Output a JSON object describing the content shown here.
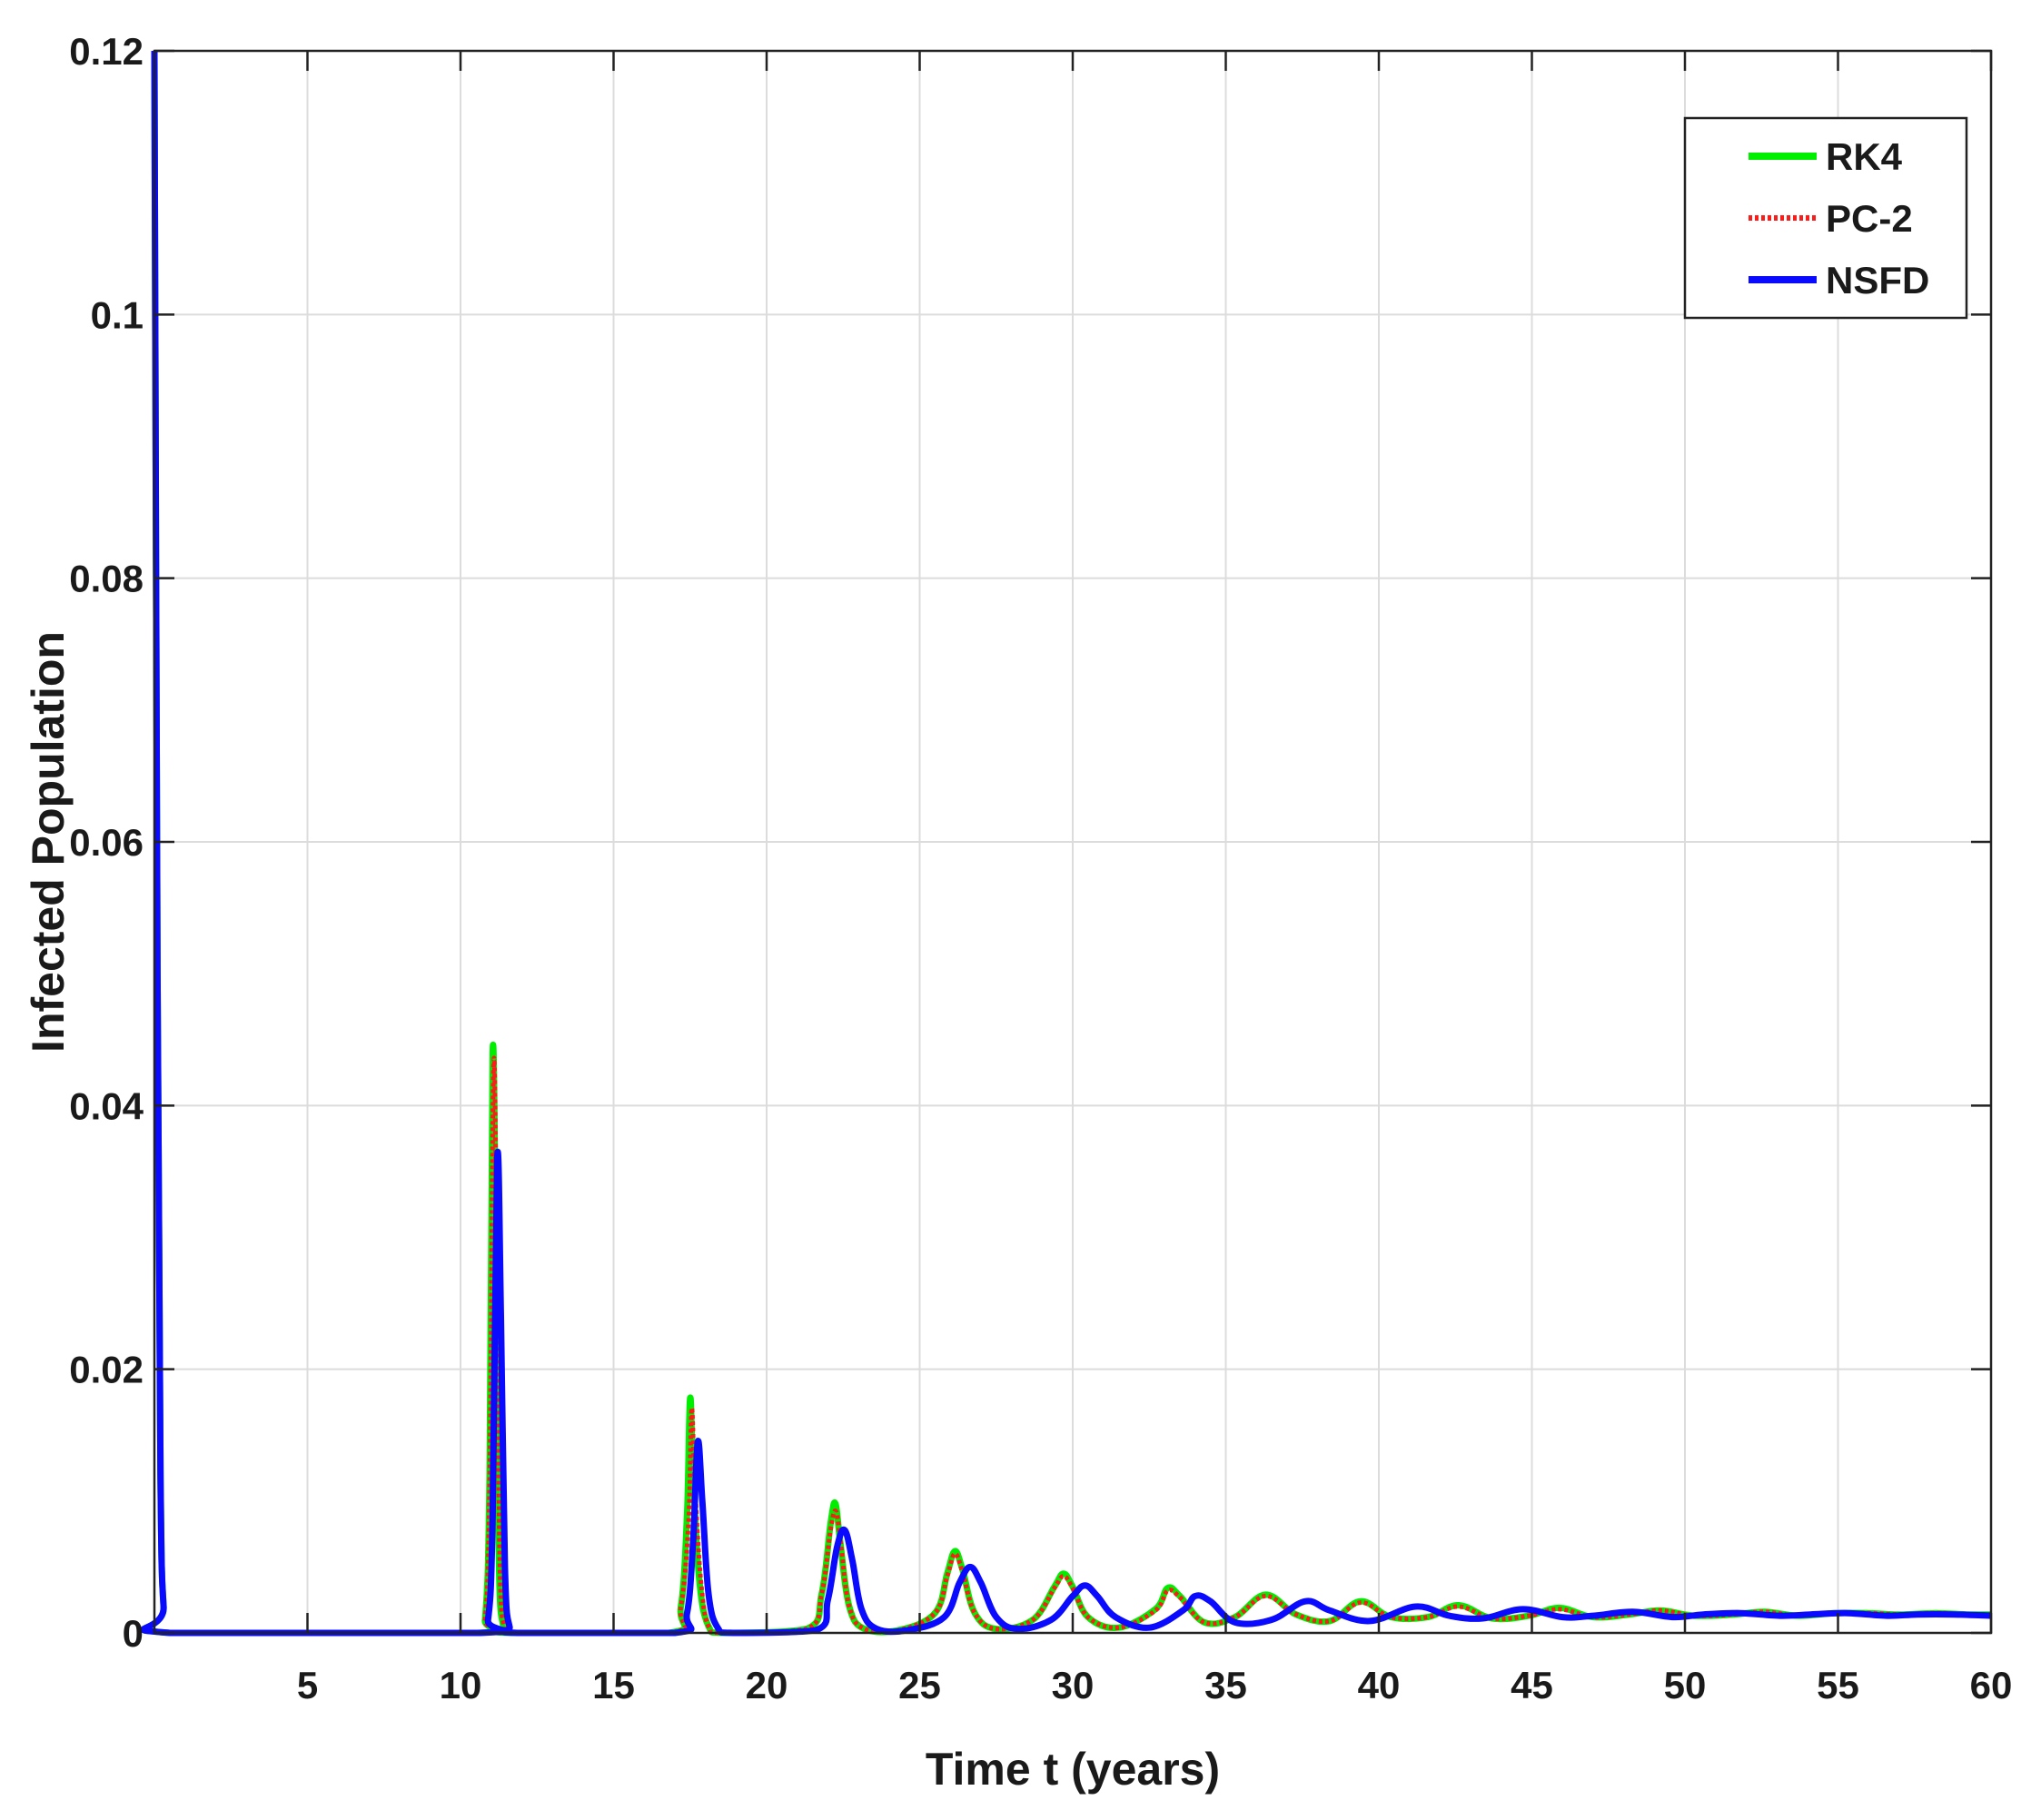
{
  "chart_data": {
    "type": "line",
    "title": "",
    "xlabel": "Time t (years)",
    "ylabel": "Infected Population",
    "xlim": [
      0,
      60
    ],
    "ylim": [
      0,
      0.12
    ],
    "xticks": [
      5,
      10,
      15,
      20,
      25,
      30,
      35,
      40,
      45,
      50,
      55,
      60
    ],
    "xtick_labels": [
      "5",
      "10",
      "15",
      "20",
      "25",
      "30",
      "35",
      "40",
      "45",
      "50",
      "55",
      "60"
    ],
    "yticks": [
      0,
      0.02,
      0.04,
      0.06,
      0.08,
      0.1,
      0.12
    ],
    "ytick_labels": [
      "0",
      "0.02",
      "0.04",
      "0.06",
      "0.08",
      "0.1",
      "0.12"
    ],
    "grid": true,
    "legend_position": "top-right",
    "series": [
      {
        "name": "RK4",
        "color": "#00ee00",
        "style": "solid",
        "x": [
          0,
          0.1,
          0.2,
          0.3,
          0.5,
          10.5,
          10.8,
          10.95,
          11.05,
          11.15,
          11.25,
          11.4,
          11.7,
          16.8,
          17.2,
          17.4,
          17.5,
          17.6,
          17.8,
          18.1,
          18.6,
          21.3,
          21.8,
          22.1,
          22.25,
          22.4,
          22.7,
          23.2,
          24.3,
          25.5,
          25.9,
          26.15,
          26.4,
          26.8,
          27.5,
          28.7,
          29.4,
          29.7,
          30.0,
          30.5,
          31.5,
          32.7,
          33.1,
          33.5,
          34.3,
          35.3,
          36.3,
          37.3,
          38.4,
          39.4,
          40.4,
          41.6,
          42.6,
          43.7,
          44.9,
          45.9,
          47.0,
          48.2,
          49.2,
          50.3,
          51.6,
          52.6,
          53.7,
          54.9,
          56.0,
          57.0,
          58.2,
          59.2,
          60
        ],
        "y": [
          0.12,
          0.05,
          0.012,
          0.002,
          0,
          0,
          0.001,
          0.012,
          0.044,
          0.03,
          0.006,
          0.0005,
          0,
          0,
          0.002,
          0.009,
          0.0178,
          0.012,
          0.004,
          0.0005,
          0,
          0.0003,
          0.003,
          0.0085,
          0.0098,
          0.007,
          0.002,
          0.0003,
          0.0002,
          0.0015,
          0.0045,
          0.0062,
          0.0048,
          0.0015,
          0.0003,
          0.001,
          0.0035,
          0.0045,
          0.0035,
          0.0012,
          0.0004,
          0.0018,
          0.0034,
          0.0028,
          0.0008,
          0.0012,
          0.0029,
          0.0014,
          0.0009,
          0.0024,
          0.0012,
          0.0012,
          0.0021,
          0.0011,
          0.0013,
          0.0019,
          0.0012,
          0.0014,
          0.0017,
          0.0013,
          0.0014,
          0.0016,
          0.0013,
          0.0015,
          0.0015,
          0.0014,
          0.0015,
          0.0014,
          0.0014
        ]
      },
      {
        "name": "PC-2",
        "color": "#ff1a1a",
        "style": "dotted",
        "x": [
          0,
          0.1,
          0.2,
          0.3,
          0.5,
          10.5,
          10.8,
          10.95,
          11.08,
          11.18,
          11.28,
          11.42,
          11.7,
          16.8,
          17.2,
          17.45,
          17.55,
          17.65,
          17.85,
          18.1,
          18.6,
          21.3,
          21.8,
          22.1,
          22.27,
          22.42,
          22.7,
          23.2,
          24.3,
          25.5,
          25.9,
          26.15,
          26.4,
          26.8,
          27.5,
          28.7,
          29.4,
          29.7,
          30.0,
          30.5,
          31.5,
          32.7,
          33.1,
          33.5,
          34.3,
          35.3,
          36.3,
          37.3,
          38.4,
          39.4,
          40.4,
          41.6,
          42.6,
          43.7,
          44.9,
          45.9,
          47.0,
          48.2,
          49.2,
          50.3,
          51.6,
          52.6,
          53.7,
          54.9,
          56.0,
          57.0,
          58.2,
          59.2,
          60
        ],
        "y": [
          0.12,
          0.05,
          0.012,
          0.002,
          0,
          0,
          0.001,
          0.011,
          0.043,
          0.029,
          0.006,
          0.0005,
          0,
          0,
          0.002,
          0.0085,
          0.017,
          0.0115,
          0.004,
          0.0005,
          0,
          0.0003,
          0.003,
          0.008,
          0.0092,
          0.0068,
          0.002,
          0.0003,
          0.0002,
          0.0015,
          0.0043,
          0.006,
          0.0046,
          0.0015,
          0.0003,
          0.001,
          0.0034,
          0.0043,
          0.0034,
          0.0012,
          0.0004,
          0.0017,
          0.0032,
          0.0027,
          0.0008,
          0.0012,
          0.0028,
          0.0014,
          0.0009,
          0.0023,
          0.0012,
          0.0012,
          0.002,
          0.0011,
          0.0013,
          0.0018,
          0.0012,
          0.0014,
          0.0017,
          0.0013,
          0.0014,
          0.0016,
          0.0013,
          0.0015,
          0.0015,
          0.0014,
          0.0015,
          0.0014,
          0.0014
        ]
      },
      {
        "name": "NSFD",
        "color": "#0a0aff",
        "style": "solid",
        "x": [
          0,
          0.1,
          0.2,
          0.3,
          0.5,
          10.6,
          10.9,
          11.05,
          11.2,
          11.32,
          11.45,
          11.6,
          11.9,
          17.0,
          17.4,
          17.6,
          17.75,
          17.9,
          18.1,
          18.4,
          18.9,
          21.6,
          22.0,
          22.3,
          22.55,
          22.8,
          23.1,
          23.6,
          24.6,
          25.8,
          26.3,
          26.65,
          27.0,
          27.5,
          28.2,
          29.3,
          30.0,
          30.4,
          30.8,
          31.4,
          32.5,
          33.6,
          34.0,
          34.5,
          35.3,
          36.5,
          37.6,
          38.4,
          39.7,
          41.2,
          42.3,
          43.4,
          44.7,
          46.0,
          47.0,
          48.3,
          49.6,
          50.6,
          51.8,
          53.1,
          54.1,
          55.3,
          56.6,
          57.6,
          58.8,
          60
        ],
        "y": [
          0.12,
          0.05,
          0.012,
          0.002,
          0,
          0,
          0.001,
          0.009,
          0.036,
          0.024,
          0.005,
          0.0005,
          0,
          0,
          0.0015,
          0.007,
          0.0145,
          0.01,
          0.003,
          0.0004,
          0,
          0.0002,
          0.0025,
          0.0065,
          0.0078,
          0.0055,
          0.0018,
          0.0003,
          0.0002,
          0.0012,
          0.0038,
          0.005,
          0.0038,
          0.0012,
          0.0003,
          0.001,
          0.0028,
          0.0036,
          0.0028,
          0.0012,
          0.0004,
          0.0017,
          0.0028,
          0.0024,
          0.0008,
          0.001,
          0.0024,
          0.0017,
          0.0009,
          0.002,
          0.0013,
          0.0011,
          0.0018,
          0.0012,
          0.0013,
          0.0016,
          0.0012,
          0.0014,
          0.0015,
          0.0013,
          0.0014,
          0.0015,
          0.0013,
          0.0014,
          0.0014,
          0.0013
        ]
      }
    ]
  }
}
